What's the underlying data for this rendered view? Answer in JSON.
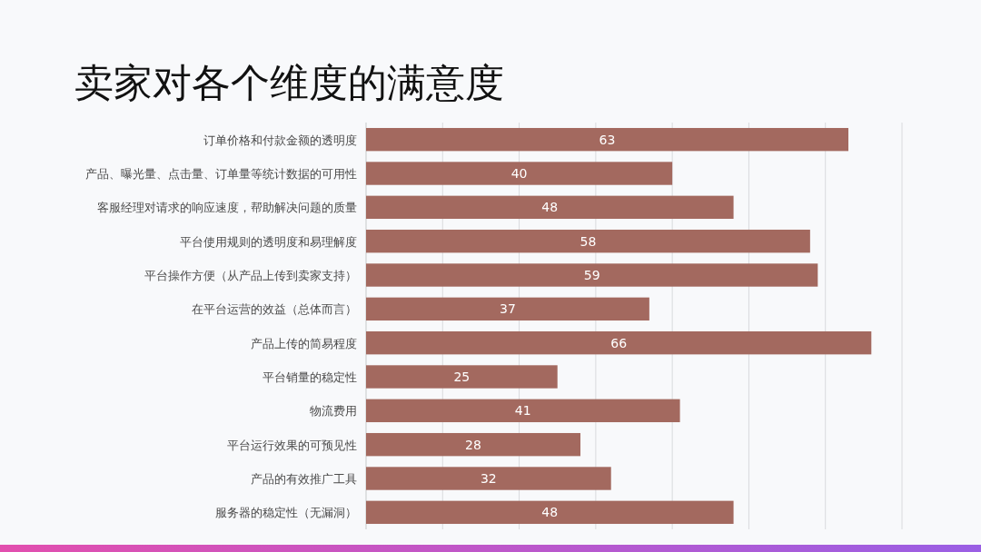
{
  "chart_data": {
    "type": "bar",
    "orientation": "horizontal",
    "title": "卖家对各个维度的满意度",
    "categories": [
      "订单价格和付款金额的透明度",
      "产品、曝光量、点击量、订单量等统计数据的可用性",
      "客服经理对请求的响应速度，帮助解决问题的质量",
      "平台使用规则的透明度和易理解度",
      "平台操作方便（从产品上传到卖家支持）",
      "在平台运营的效益（总体而言）",
      "产品上传的简易程度",
      "平台销量的稳定性",
      "物流费用",
      "平台运行效果的可预见性",
      "产品的有效推广工具",
      "服务器的稳定性（无漏洞）"
    ],
    "values": [
      63,
      40,
      48,
      58,
      59,
      37,
      66,
      25,
      41,
      28,
      32,
      48
    ],
    "color": "#a3695f",
    "xlim": [
      0,
      70
    ],
    "xticks": [
      {
        "value": 0,
        "label": null
      },
      {
        "value": 10,
        "label": null
      },
      {
        "value": 20,
        "label": null
      },
      {
        "value": 30,
        "label": null
      },
      {
        "value": 40,
        "label": null
      },
      {
        "value": 50,
        "label": null
      },
      {
        "value": 60,
        "label": null
      },
      {
        "value": 70,
        "label": null
      }
    ],
    "grid": "x",
    "tick_labels": "y",
    "data_labels": true
  }
}
